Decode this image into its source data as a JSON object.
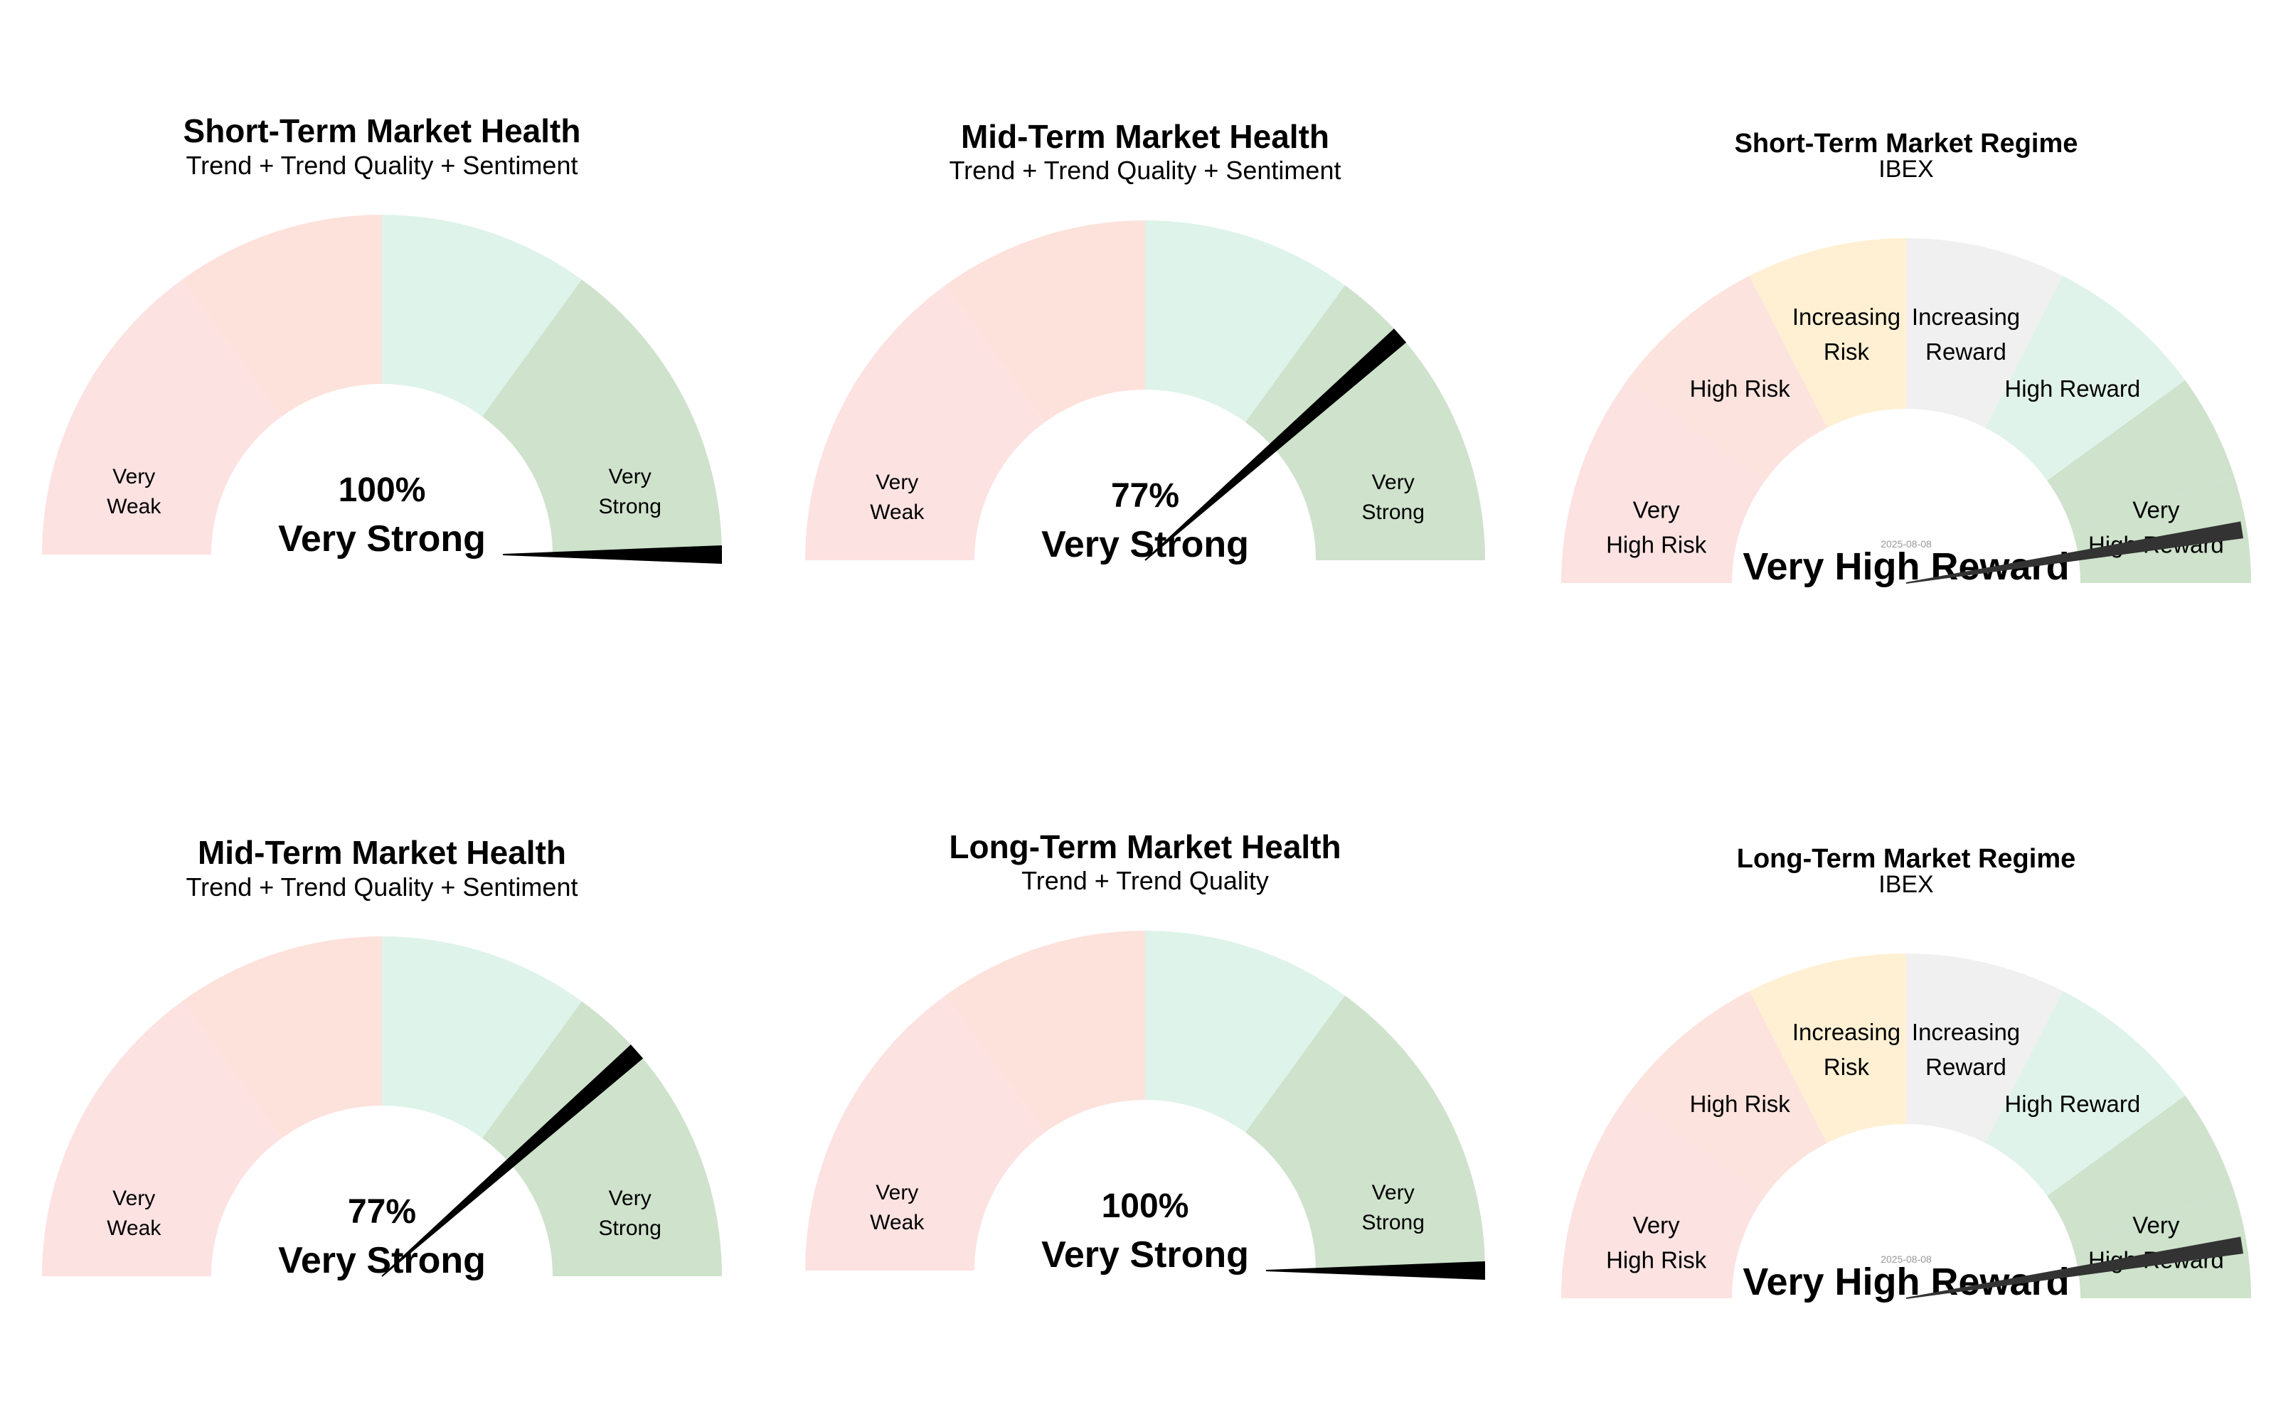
{
  "chart_data": [
    {
      "type": "gauge",
      "title": "Short-Term Market Health",
      "subtitle": "Trend + Trend Quality + Sentiment",
      "value_label": "100%",
      "status": "Very Strong",
      "value": 100,
      "range": [
        0,
        100
      ],
      "segments": [
        {
          "label": [
            "Very",
            "Weak"
          ],
          "from": 0,
          "to": 30,
          "color": "#fde2e2"
        },
        {
          "label": [],
          "from": 30,
          "to": 50,
          "color": "#fde1db"
        },
        {
          "label": [],
          "from": 50,
          "to": 70,
          "color": "#def3ea"
        },
        {
          "label": [
            "Very",
            "Strong"
          ],
          "from": 70,
          "to": 100,
          "color": "#cee2cc"
        }
      ]
    },
    {
      "type": "gauge",
      "title": "Mid-Term Market Health",
      "subtitle": "Trend + Trend Quality + Sentiment",
      "value_label": "77%",
      "status": "Very Strong",
      "value": 77,
      "range": [
        0,
        100
      ],
      "segments": [
        {
          "label": [
            "Very",
            "Weak"
          ],
          "from": 0,
          "to": 30,
          "color": "#fde2e2"
        },
        {
          "label": [],
          "from": 30,
          "to": 50,
          "color": "#fde1db"
        },
        {
          "label": [],
          "from": 50,
          "to": 70,
          "color": "#def3ea"
        },
        {
          "label": [],
          "from": 70,
          "to": 80,
          "color": "#cee2cc"
        },
        {
          "label": [
            "Very",
            "Strong"
          ],
          "from": 80,
          "to": 100,
          "color": "#cee2cc"
        }
      ]
    },
    {
      "type": "gauge",
      "title": "Short-Term Market Regime",
      "subtitle": "IBEX",
      "date": "2025-08-08",
      "status": "Very High Reward",
      "value": 95,
      "range": [
        0,
        100
      ],
      "segments": [
        {
          "label": [
            "Very",
            "High Risk"
          ],
          "from": 0,
          "to": 20,
          "color": "#fde2e2"
        },
        {
          "label": [
            "High Risk"
          ],
          "from": 20,
          "to": 35,
          "color": "#fde3dd"
        },
        {
          "label": [
            "Increasing",
            "Risk"
          ],
          "from": 35,
          "to": 50,
          "color": "#fff0d3"
        },
        {
          "label": [
            "Increasing",
            "Reward"
          ],
          "from": 50,
          "to": 65,
          "color": "#f0f0f0"
        },
        {
          "label": [
            "High Reward"
          ],
          "from": 65,
          "to": 80,
          "color": "#e0f3ea"
        },
        {
          "label": [],
          "from": 80,
          "to": 90,
          "color": "#cee2cc"
        },
        {
          "label": [
            "Very",
            "High Reward"
          ],
          "from": 90,
          "to": 100,
          "color": "#cee2cc"
        }
      ]
    },
    {
      "type": "gauge",
      "title": "Mid-Term Market Health",
      "subtitle": "Trend + Trend Quality + Sentiment",
      "value_label": "77%",
      "status": "Very Strong",
      "value": 77,
      "range": [
        0,
        100
      ],
      "segments": [
        {
          "label": [
            "Very",
            "Weak"
          ],
          "from": 0,
          "to": 30,
          "color": "#fde2e2"
        },
        {
          "label": [],
          "from": 30,
          "to": 50,
          "color": "#fde1db"
        },
        {
          "label": [],
          "from": 50,
          "to": 70,
          "color": "#def3ea"
        },
        {
          "label": [],
          "from": 70,
          "to": 80,
          "color": "#cee2cc"
        },
        {
          "label": [
            "Very",
            "Strong"
          ],
          "from": 80,
          "to": 100,
          "color": "#cee2cc"
        }
      ]
    },
    {
      "type": "gauge",
      "title": "Long-Term Market Health",
      "subtitle": "Trend + Trend Quality",
      "value_label": "100%",
      "status": "Very Strong",
      "value": 100,
      "range": [
        0,
        100
      ],
      "segments": [
        {
          "label": [
            "Very",
            "Weak"
          ],
          "from": 0,
          "to": 30,
          "color": "#fde2e2"
        },
        {
          "label": [],
          "from": 30,
          "to": 50,
          "color": "#fde1db"
        },
        {
          "label": [],
          "from": 50,
          "to": 70,
          "color": "#def3ea"
        },
        {
          "label": [
            "Very",
            "Strong"
          ],
          "from": 70,
          "to": 100,
          "color": "#cee2cc"
        }
      ]
    },
    {
      "type": "gauge",
      "title": "Long-Term Market Regime",
      "subtitle": "IBEX",
      "date": "2025-08-08",
      "status": "Very High Reward",
      "value": 95,
      "range": [
        0,
        100
      ],
      "segments": [
        {
          "label": [
            "Very",
            "High Risk"
          ],
          "from": 0,
          "to": 20,
          "color": "#fde2e2"
        },
        {
          "label": [
            "High Risk"
          ],
          "from": 20,
          "to": 35,
          "color": "#fde3dd"
        },
        {
          "label": [
            "Increasing",
            "Risk"
          ],
          "from": 35,
          "to": 50,
          "color": "#fff0d3"
        },
        {
          "label": [
            "Increasing",
            "Reward"
          ],
          "from": 50,
          "to": 65,
          "color": "#f0f0f0"
        },
        {
          "label": [
            "High Reward"
          ],
          "from": 65,
          "to": 80,
          "color": "#e0f3ea"
        },
        {
          "label": [],
          "from": 80,
          "to": 90,
          "color": "#cee2cc"
        },
        {
          "label": [
            "Very",
            "High Reward"
          ],
          "from": 90,
          "to": 100,
          "color": "#cee2cc"
        }
      ]
    }
  ],
  "colors": {
    "needle_health": "#000000",
    "needle_regime": "#333333",
    "date_text": "#999999"
  }
}
